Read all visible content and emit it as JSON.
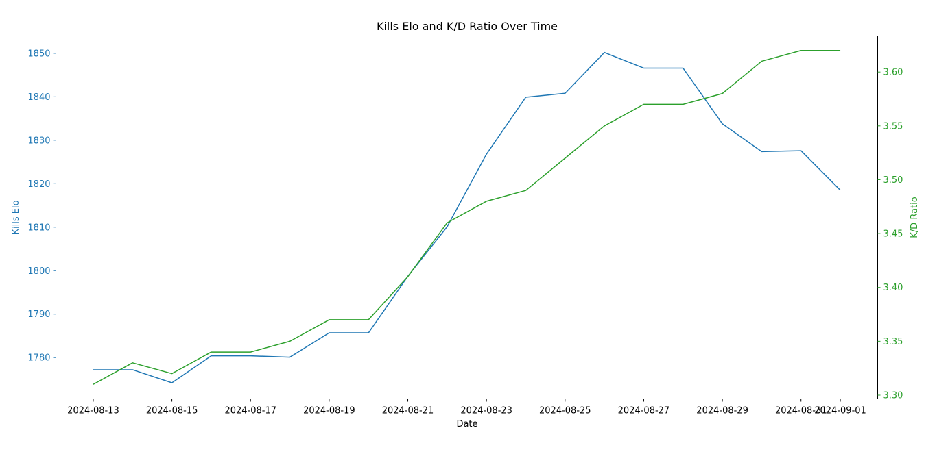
{
  "chart_data": {
    "type": "line",
    "title": "Kills Elo and K/D Ratio Over Time",
    "xlabel": "Date",
    "ylabel_left": "Kills Elo",
    "ylabel_right": "K/D Ratio",
    "x": [
      "2024-08-13",
      "2024-08-14",
      "2024-08-15",
      "2024-08-16",
      "2024-08-17",
      "2024-08-18",
      "2024-08-19",
      "2024-08-20",
      "2024-08-21",
      "2024-08-22",
      "2024-08-23",
      "2024-08-24",
      "2024-08-25",
      "2024-08-26",
      "2024-08-27",
      "2024-08-28",
      "2024-08-29",
      "2024-08-30",
      "2024-08-31",
      "2024-09-01"
    ],
    "x_ticks": [
      "2024-08-13",
      "2024-08-15",
      "2024-08-17",
      "2024-08-19",
      "2024-08-21",
      "2024-08-23",
      "2024-08-25",
      "2024-08-27",
      "2024-08-29",
      "2024-08-31",
      "2024-09-01"
    ],
    "series": [
      {
        "axis": "left",
        "color": "#1f77b4",
        "values": [
          1777.2,
          1777.2,
          1774.2,
          1780.4,
          1780.4,
          1780.1,
          1785.7,
          1785.7,
          1798.7,
          1810.1,
          1826.8,
          1839.9,
          1840.8,
          1850.2,
          1846.6,
          1846.6,
          1833.8,
          1827.4,
          1827.6,
          1818.5
        ]
      },
      {
        "axis": "right",
        "color": "#2ca02c",
        "values": [
          3.31,
          3.33,
          3.32,
          3.34,
          3.34,
          3.35,
          3.37,
          3.37,
          3.41,
          3.46,
          3.48,
          3.49,
          3.52,
          3.55,
          3.57,
          3.57,
          3.58,
          3.61,
          3.62,
          3.62
        ]
      }
    ],
    "ylim_left": [
      1770.5,
      1854.0
    ],
    "ylim_right": [
      3.2965,
      3.6335
    ],
    "yticks_left": [
      1780,
      1790,
      1800,
      1810,
      1820,
      1830,
      1840,
      1850
    ],
    "yticks_right": [
      "3.30",
      "3.35",
      "3.40",
      "3.45",
      "3.50",
      "3.55",
      "3.60"
    ],
    "grid": false,
    "left_axis_color": "#1f77b4",
    "right_axis_color": "#2ca02c"
  }
}
